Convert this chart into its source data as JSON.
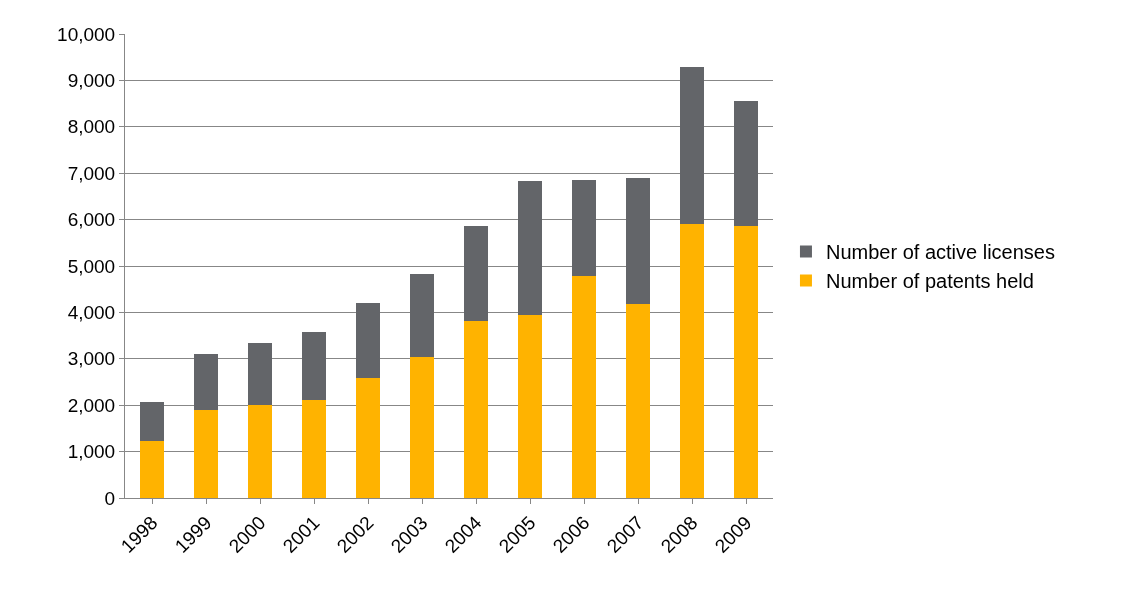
{
  "chart_data": {
    "type": "bar",
    "stacked": true,
    "categories": [
      "1998",
      "1999",
      "2000",
      "2001",
      "2002",
      "2003",
      "2004",
      "2005",
      "2006",
      "2007",
      "2008",
      "2009"
    ],
    "series": [
      {
        "name": "Number of patents held",
        "color": "#ffb300",
        "values": [
          1230,
          1900,
          2000,
          2110,
          2590,
          3040,
          3810,
          3940,
          4780,
          4180,
          5900,
          5860
        ]
      },
      {
        "name": "Number of active licenses",
        "color": "#636569",
        "values": [
          840,
          1200,
          1340,
          1470,
          1610,
          1790,
          2050,
          2890,
          2070,
          2720,
          3390,
          2700
        ]
      }
    ],
    "ylim": [
      0,
      10000
    ],
    "yticks": [
      {
        "value": 0,
        "label": "0"
      },
      {
        "value": 1000,
        "label": "1,000"
      },
      {
        "value": 2000,
        "label": "2,000"
      },
      {
        "value": 3000,
        "label": "3,000"
      },
      {
        "value": 4000,
        "label": "4,000"
      },
      {
        "value": 5000,
        "label": "5,000"
      },
      {
        "value": 6000,
        "label": "6,000"
      },
      {
        "value": 7000,
        "label": "7,000"
      },
      {
        "value": 8000,
        "label": "8,000"
      },
      {
        "value": 9000,
        "label": "9,000"
      },
      {
        "value": 10000,
        "label": "10,000"
      }
    ],
    "grid": "y",
    "legend": "right"
  }
}
